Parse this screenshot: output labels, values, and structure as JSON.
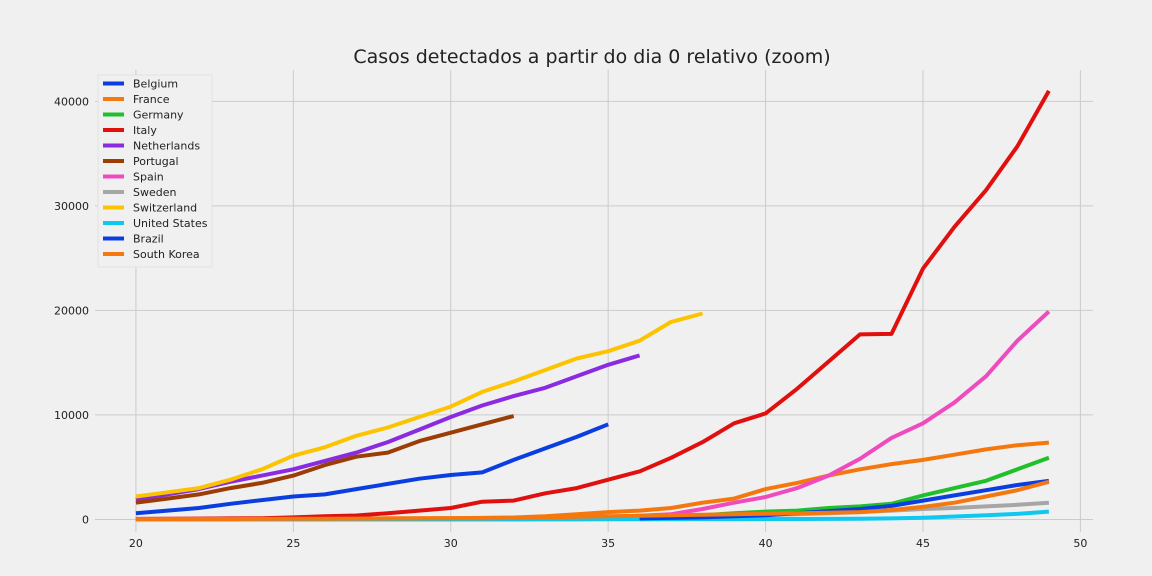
{
  "chart_data": {
    "type": "line",
    "title": "Casos detectados a partir do dia 0 relativo (zoom)",
    "xlabel": "",
    "ylabel": "",
    "xlim": [
      18.7,
      50.4
    ],
    "ylim": [
      -1200,
      43000
    ],
    "xticks": [
      20,
      25,
      30,
      35,
      40,
      45,
      50
    ],
    "yticks": [
      0,
      10000,
      20000,
      30000,
      40000
    ],
    "grid": true,
    "legend_position": "top-left",
    "series": [
      {
        "name": "Belgium",
        "color": "#0b3ee0",
        "x": [
          20,
          21,
          22,
          23,
          24,
          25,
          26,
          27,
          28,
          29,
          30,
          31,
          32,
          33,
          34,
          35
        ],
        "y": [
          600,
          850,
          1100,
          1500,
          1850,
          2200,
          2400,
          2900,
          3400,
          3900,
          4250,
          4500,
          5700,
          6800,
          7900,
          9100
        ]
      },
      {
        "name": "France",
        "color": "#f5780f",
        "x": [
          20,
          21,
          22,
          23,
          24,
          25,
          26,
          27,
          28,
          29,
          30,
          31,
          32,
          33,
          34,
          35,
          36,
          37,
          38,
          39,
          40,
          41,
          42,
          43,
          44,
          45,
          46,
          47,
          48,
          49
        ],
        "y": [
          30,
          40,
          50,
          60,
          70,
          80,
          90,
          100,
          110,
          120,
          130,
          150,
          190,
          300,
          500,
          700,
          850,
          1100,
          1600,
          2000,
          2900,
          3500,
          4200,
          4800,
          5300,
          5700,
          6200,
          6700,
          7100,
          7350
        ]
      },
      {
        "name": "Germany",
        "color": "#20c02a",
        "x": [
          20,
          21,
          22,
          23,
          24,
          25,
          26,
          27,
          28,
          29,
          30,
          31,
          32,
          33,
          34,
          35,
          36,
          37,
          38,
          39,
          40,
          41,
          42,
          43,
          44,
          45,
          46,
          47,
          48,
          49
        ],
        "y": [
          10,
          12,
          14,
          16,
          18,
          20,
          25,
          30,
          35,
          40,
          50,
          60,
          80,
          110,
          150,
          200,
          250,
          300,
          400,
          600,
          750,
          850,
          1100,
          1250,
          1500,
          2300,
          3000,
          3700,
          4800,
          5900
        ]
      },
      {
        "name": "Italy",
        "color": "#e0100f",
        "x": [
          20,
          21,
          22,
          23,
          24,
          25,
          26,
          27,
          28,
          29,
          30,
          31,
          32,
          33,
          34,
          35,
          36,
          37,
          38,
          39,
          40,
          41,
          42,
          43,
          44,
          45,
          46,
          47,
          48,
          49
        ],
        "y": [
          50,
          60,
          80,
          100,
          120,
          200,
          300,
          380,
          600,
          850,
          1100,
          1700,
          1800,
          2500,
          3000,
          3800,
          4600,
          5900,
          7400,
          9200,
          10150,
          12500,
          15100,
          17700,
          17750,
          24000,
          28000,
          31500,
          35700,
          41000
        ]
      },
      {
        "name": "Netherlands",
        "color": "#8a2be2",
        "x": [
          20,
          21,
          22,
          23,
          24,
          25,
          26,
          27,
          28,
          29,
          30,
          31,
          32,
          33,
          34,
          35,
          36
        ],
        "y": [
          1900,
          2400,
          2900,
          3600,
          4200,
          4800,
          5600,
          6400,
          7400,
          8600,
          9800,
          10900,
          11800,
          12600,
          13700,
          14800,
          15700
        ]
      },
      {
        "name": "Portugal",
        "color": "#9b3d05",
        "x": [
          20,
          21,
          22,
          23,
          24,
          25,
          26,
          27,
          28,
          29,
          30,
          31,
          32
        ],
        "y": [
          1600,
          2000,
          2400,
          3000,
          3500,
          4200,
          5200,
          6000,
          6400,
          7500,
          8300,
          9100,
          9900
        ]
      },
      {
        "name": "Spain",
        "color": "#ef4bbf",
        "x": [
          20,
          21,
          22,
          23,
          24,
          25,
          26,
          27,
          28,
          29,
          30,
          31,
          32,
          33,
          34,
          35,
          36,
          37,
          38,
          39,
          40,
          41,
          42,
          43,
          44,
          45,
          46,
          47,
          48,
          49
        ],
        "y": [
          5,
          8,
          10,
          12,
          15,
          20,
          25,
          30,
          40,
          50,
          60,
          80,
          110,
          150,
          200,
          250,
          350,
          500,
          1000,
          1600,
          2150,
          3000,
          4200,
          5800,
          7800,
          9200,
          11200,
          13700,
          17100,
          19900
        ]
      },
      {
        "name": "Sweden",
        "color": "#a6a6a6",
        "x": [
          20,
          21,
          22,
          23,
          24,
          25,
          26,
          27,
          28,
          29,
          30,
          31,
          32,
          33,
          34,
          35,
          36,
          37,
          38,
          39,
          40,
          41,
          42,
          43,
          44,
          45,
          46,
          47,
          48,
          49
        ],
        "y": [
          5,
          8,
          10,
          12,
          14,
          16,
          20,
          25,
          30,
          40,
          50,
          60,
          80,
          120,
          160,
          200,
          250,
          300,
          350,
          400,
          450,
          500,
          600,
          700,
          850,
          1000,
          1100,
          1250,
          1400,
          1600
        ]
      },
      {
        "name": "Switzerland",
        "color": "#fcc400",
        "x": [
          20,
          21,
          22,
          23,
          24,
          25,
          26,
          27,
          28,
          29,
          30,
          31,
          32,
          33,
          34,
          35,
          36,
          37,
          38
        ],
        "y": [
          2200,
          2600,
          3000,
          3800,
          4800,
          6100,
          6900,
          8000,
          8800,
          9800,
          10800,
          12200,
          13200,
          14300,
          15400,
          16100,
          17100,
          18900,
          19700
        ]
      },
      {
        "name": "United States",
        "color": "#0fc8f0",
        "x": [
          20,
          21,
          22,
          23,
          24,
          25,
          26,
          27,
          28,
          29,
          30,
          31,
          32,
          33,
          34,
          35,
          36,
          37,
          38,
          39,
          40,
          41,
          42,
          43,
          44,
          45,
          46,
          47,
          48,
          49
        ],
        "y": [
          0,
          0,
          0,
          0,
          0,
          0,
          0,
          0,
          0,
          0,
          0,
          0,
          0,
          5,
          10,
          15,
          20,
          25,
          30,
          35,
          40,
          45,
          50,
          60,
          100,
          170,
          280,
          400,
          530,
          750
        ]
      },
      {
        "name": "Brazil",
        "color": "#0b3ee0",
        "x": [
          36,
          37,
          38,
          39,
          40,
          41,
          42,
          43,
          44,
          45,
          46,
          47,
          48,
          49
        ],
        "y": [
          100,
          150,
          200,
          300,
          400,
          600,
          800,
          1000,
          1300,
          1800,
          2300,
          2800,
          3300,
          3700
        ]
      },
      {
        "name": "South Korea",
        "color": "#f5780f",
        "x": [
          20,
          21,
          22,
          23,
          24,
          25,
          26,
          27,
          28,
          29,
          30,
          31,
          32,
          33,
          34,
          35,
          36,
          37,
          38,
          39,
          40,
          41,
          42,
          43,
          44,
          45,
          46,
          47,
          48,
          49
        ],
        "y": [
          30,
          35,
          40,
          45,
          50,
          60,
          70,
          80,
          90,
          100,
          110,
          120,
          150,
          200,
          250,
          300,
          350,
          400,
          450,
          500,
          550,
          600,
          650,
          700,
          900,
          1200,
          1600,
          2200,
          2800,
          3600
        ]
      }
    ]
  }
}
